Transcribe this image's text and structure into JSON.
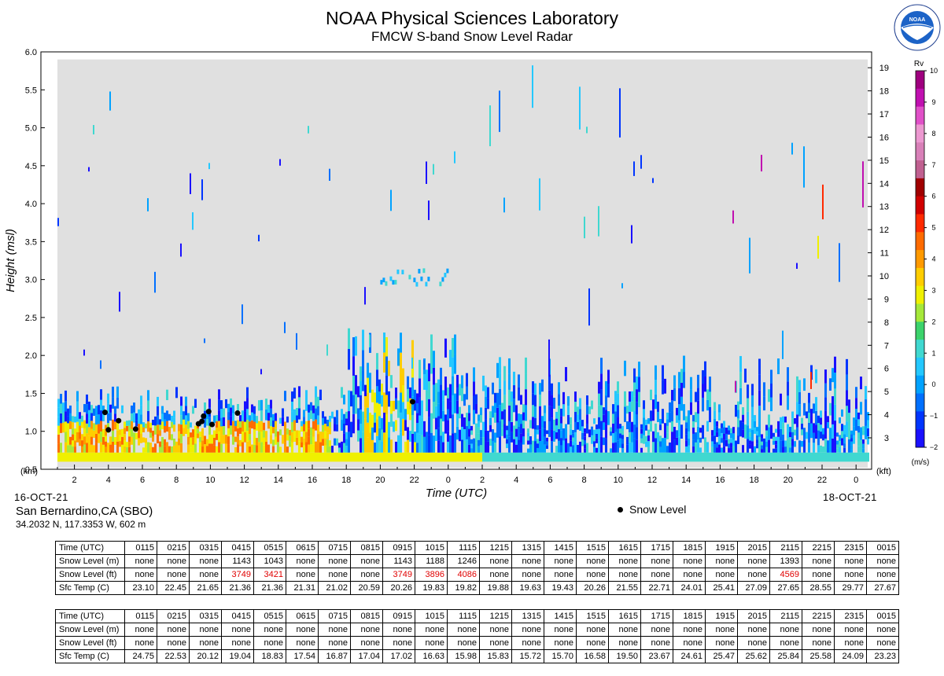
{
  "header": {
    "title": "NOAA Physical Sciences Laboratory",
    "subtitle": "FMCW S-band Snow Level Radar"
  },
  "logo": {
    "icon": "noaa-logo-icon",
    "text": "NOAA"
  },
  "colors": {
    "background_plot": "#e0e0e0",
    "snow_dot": "#000000",
    "red_value": "#e00000",
    "colorbar": [
      "#1a10ff",
      "#0035ff",
      "#0070ff",
      "#00a2ff",
      "#24c8ff",
      "#40d8d0",
      "#3cd36c",
      "#a5e83a",
      "#eff000",
      "#ffcd00",
      "#ff9a00",
      "#ff6b00",
      "#ff2a00",
      "#d00000",
      "#a00000",
      "#c06090",
      "#d880b8",
      "#ec98d0",
      "#e050c8",
      "#c010b0",
      "#9f007f"
    ]
  },
  "chart_data": {
    "type": "heatmap",
    "title": "NOAA Physical Sciences Laboratory",
    "subtitle": "FMCW S-band Snow Level Radar",
    "xlabel": "Time (UTC)",
    "ylabel": "Height (msl)",
    "y_left_unit": "(km)",
    "y_right_unit": "(kft)",
    "y_left_ticks": [
      "0.5",
      "1.0",
      "1.5",
      "2.0",
      "2.5",
      "3.0",
      "3.5",
      "4.0",
      "4.5",
      "5.0",
      "5.5",
      "6.0"
    ],
    "y_right_ticks": [
      "3",
      "4",
      "5",
      "6",
      "7",
      "8",
      "9",
      "10",
      "11",
      "12",
      "13",
      "14",
      "15",
      "16",
      "17",
      "18",
      "19"
    ],
    "ylim_km": [
      0.5,
      6.0
    ],
    "x_ticks": [
      "2",
      "4",
      "6",
      "8",
      "10",
      "12",
      "14",
      "16",
      "18",
      "20",
      "22",
      "0",
      "2",
      "4",
      "6",
      "8",
      "10",
      "12",
      "14",
      "16",
      "18",
      "20",
      "22",
      "0"
    ],
    "date_start": "16-OCT-21",
    "date_end": "18-OCT-21",
    "colorbar": {
      "label": "Rv",
      "unit": "(m/s)",
      "ticks": [
        "10",
        "9",
        "8",
        "7",
        "6",
        "5",
        "4",
        "3",
        "2",
        "1",
        "0",
        "−1",
        "−2"
      ],
      "range": [
        -2,
        10
      ]
    },
    "snow_level_series": {
      "name": "Snow Level",
      "points": [
        {
          "x_hours": 3.8,
          "y_km": 1.25
        },
        {
          "x_hours": 4.0,
          "y_km": 1.02
        },
        {
          "x_hours": 4.6,
          "y_km": 1.14
        },
        {
          "x_hours": 5.6,
          "y_km": 1.03
        },
        {
          "x_hours": 9.3,
          "y_km": 1.1
        },
        {
          "x_hours": 9.5,
          "y_km": 1.13
        },
        {
          "x_hours": 9.6,
          "y_km": 1.2
        },
        {
          "x_hours": 9.9,
          "y_km": 1.26
        },
        {
          "x_hours": 10.1,
          "y_km": 1.09
        },
        {
          "x_hours": 11.6,
          "y_km": 1.24
        },
        {
          "x_hours": 21.9,
          "y_km": 1.39
        }
      ]
    },
    "legend": "bottom-center"
  },
  "station": {
    "name": "San Bernardino,CA (SBO)",
    "coords": "34.2032 N, 117.3353 W, 602 m"
  },
  "legend": {
    "label": "Snow Level"
  },
  "tables": [
    {
      "rows": [
        {
          "label": "Time (UTC)",
          "values": [
            "0115",
            "0215",
            "0315",
            "0415",
            "0515",
            "0615",
            "0715",
            "0815",
            "0915",
            "1015",
            "1115",
            "1215",
            "1315",
            "1415",
            "1515",
            "1615",
            "1715",
            "1815",
            "1915",
            "2015",
            "2115",
            "2215",
            "2315",
            "0015"
          ]
        },
        {
          "label": "Snow Level (m)",
          "values": [
            "none",
            "none",
            "none",
            "1143",
            "1043",
            "none",
            "none",
            "none",
            "1143",
            "1188",
            "1246",
            "none",
            "none",
            "none",
            "none",
            "none",
            "none",
            "none",
            "none",
            "none",
            "1393",
            "none",
            "none",
            "none"
          ]
        },
        {
          "label": "Snow Level (ft)",
          "values": [
            "none",
            "none",
            "none",
            "3749",
            "3421",
            "none",
            "none",
            "none",
            "3749",
            "3896",
            "4086",
            "none",
            "none",
            "none",
            "none",
            "none",
            "none",
            "none",
            "none",
            "none",
            "4569",
            "none",
            "none",
            "none"
          ]
        },
        {
          "label": "Sfc Temp (C)",
          "values": [
            "23.10",
            "22.45",
            "21.65",
            "21.36",
            "21.36",
            "21.31",
            "21.02",
            "20.59",
            "20.26",
            "19.83",
            "19.82",
            "19.88",
            "19.63",
            "19.43",
            "20.26",
            "21.55",
            "22.71",
            "24.01",
            "25.41",
            "27.09",
            "27.65",
            "28.55",
            "29.77",
            "27.67"
          ]
        }
      ]
    },
    {
      "rows": [
        {
          "label": "Time (UTC)",
          "values": [
            "0115",
            "0215",
            "0315",
            "0415",
            "0515",
            "0615",
            "0715",
            "0815",
            "0915",
            "1015",
            "1115",
            "1215",
            "1315",
            "1415",
            "1515",
            "1615",
            "1715",
            "1815",
            "1915",
            "2015",
            "2115",
            "2215",
            "2315",
            "0015"
          ]
        },
        {
          "label": "Snow Level (m)",
          "values": [
            "none",
            "none",
            "none",
            "none",
            "none",
            "none",
            "none",
            "none",
            "none",
            "none",
            "none",
            "none",
            "none",
            "none",
            "none",
            "none",
            "none",
            "none",
            "none",
            "none",
            "none",
            "none",
            "none",
            "none"
          ]
        },
        {
          "label": "Snow Level (ft)",
          "values": [
            "none",
            "none",
            "none",
            "none",
            "none",
            "none",
            "none",
            "none",
            "none",
            "none",
            "none",
            "none",
            "none",
            "none",
            "none",
            "none",
            "none",
            "none",
            "none",
            "none",
            "none",
            "none",
            "none",
            "none"
          ]
        },
        {
          "label": "Sfc Temp (C)",
          "values": [
            "24.75",
            "22.53",
            "20.12",
            "19.04",
            "18.83",
            "17.54",
            "16.87",
            "17.04",
            "17.02",
            "16.63",
            "15.98",
            "15.83",
            "15.72",
            "15.70",
            "16.58",
            "19.50",
            "23.67",
            "24.61",
            "25.47",
            "25.62",
            "25.84",
            "25.58",
            "24.09",
            "23.23"
          ]
        }
      ]
    }
  ]
}
